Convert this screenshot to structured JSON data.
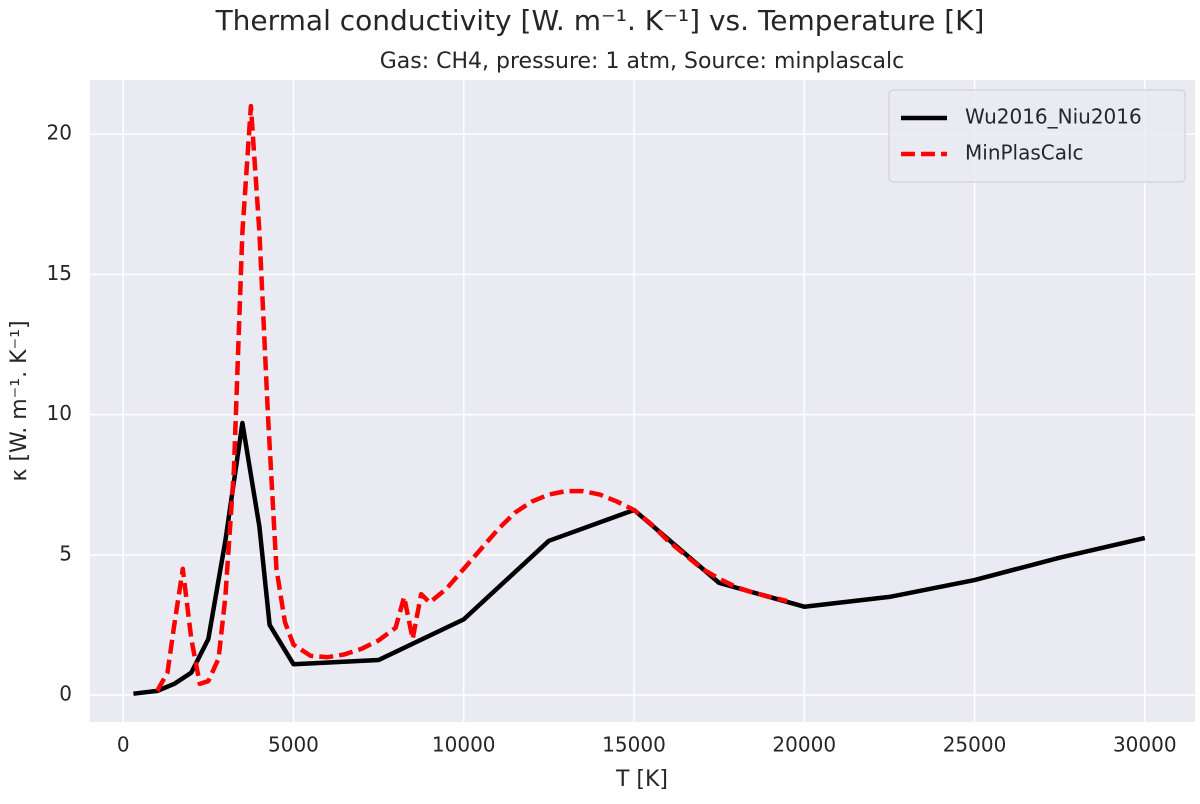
{
  "chart_data": {
    "type": "line",
    "title": "Thermal conductivity [W. m⁻¹. K⁻¹] vs. Temperature [K]",
    "subtitle": "Gas: CH4, pressure: 1 atm, Source: minplascalc",
    "x_label": "T [K]",
    "y_label": "κ [W. m⁻¹. K⁻¹]",
    "xlim": [
      -975,
      31475
    ],
    "ylim": [
      -0.96,
      21.93
    ],
    "xticks": [
      0,
      5000,
      10000,
      15000,
      20000,
      25000,
      30000
    ],
    "yticks": [
      0,
      5,
      10,
      15,
      20
    ],
    "grid": true,
    "legend": "upper right",
    "series": [
      {
        "name": "Wu2016_Niu2016",
        "color": "#000000",
        "dash": "solid",
        "x": [
          300,
          1000,
          1500,
          2000,
          2500,
          3000,
          3500,
          4000,
          4300,
          5000,
          7500,
          10000,
          12500,
          15000,
          17500,
          20000,
          22500,
          25000,
          27500,
          30000
        ],
        "values": [
          0.05,
          0.15,
          0.4,
          0.8,
          2.0,
          5.5,
          9.7,
          6.0,
          2.5,
          1.1,
          1.25,
          2.7,
          5.5,
          6.6,
          4.0,
          3.15,
          3.5,
          4.1,
          4.9,
          5.6
        ]
      },
      {
        "name": "MinPlasCalc",
        "color": "#ff0000",
        "dash": "dashed",
        "x": [
          1000,
          1300,
          1500,
          1750,
          2000,
          2250,
          2500,
          2800,
          3000,
          3250,
          3500,
          3750,
          4000,
          4250,
          4500,
          4750,
          5000,
          5500,
          6000,
          6500,
          7000,
          7500,
          8000,
          8250,
          8500,
          8750,
          9000,
          9500,
          10000,
          10500,
          11000,
          11500,
          12000,
          12500,
          13000,
          13500,
          14000,
          14500,
          15000,
          15500,
          16000,
          16500,
          17000,
          17500,
          18000,
          18500,
          19000,
          19500
        ],
        "values": [
          0.15,
          0.8,
          2.5,
          4.5,
          2.0,
          0.4,
          0.5,
          1.3,
          3.5,
          8.0,
          16.5,
          21.0,
          16.5,
          10.0,
          4.5,
          2.6,
          1.8,
          1.4,
          1.35,
          1.45,
          1.65,
          1.95,
          2.4,
          3.5,
          2.0,
          3.6,
          3.3,
          3.8,
          4.5,
          5.2,
          5.9,
          6.5,
          6.9,
          7.15,
          7.27,
          7.27,
          7.15,
          6.9,
          6.6,
          6.1,
          5.5,
          5.0,
          4.5,
          4.15,
          3.85,
          3.65,
          3.5,
          3.35
        ]
      }
    ]
  }
}
